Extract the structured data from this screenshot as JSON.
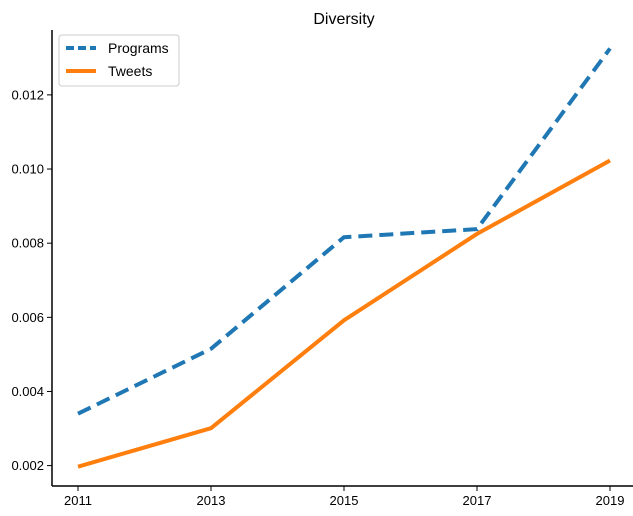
{
  "chart_data": {
    "type": "line",
    "title": "Diversity",
    "xlabel": "",
    "ylabel": "",
    "x": [
      2011,
      2013,
      2015,
      2017,
      2019
    ],
    "x_ticks": [
      "2011",
      "2013",
      "2015",
      "2017",
      "2019"
    ],
    "y_ticks": [
      "0.002",
      "0.004",
      "0.006",
      "0.008",
      "0.010",
      "0.012"
    ],
    "ylim": [
      0.00145,
      0.01375
    ],
    "grid": false,
    "legend_position": "top-left",
    "series": [
      {
        "name": "Programs",
        "values": [
          0.0034,
          0.00515,
          0.00816,
          0.00838,
          0.01325
        ],
        "color": "#1f77b4",
        "style": "dashed"
      },
      {
        "name": "Tweets",
        "values": [
          0.00197,
          0.00301,
          0.00592,
          0.00825,
          0.01023
        ],
        "color": "#ff7f0e",
        "style": "solid"
      }
    ]
  }
}
